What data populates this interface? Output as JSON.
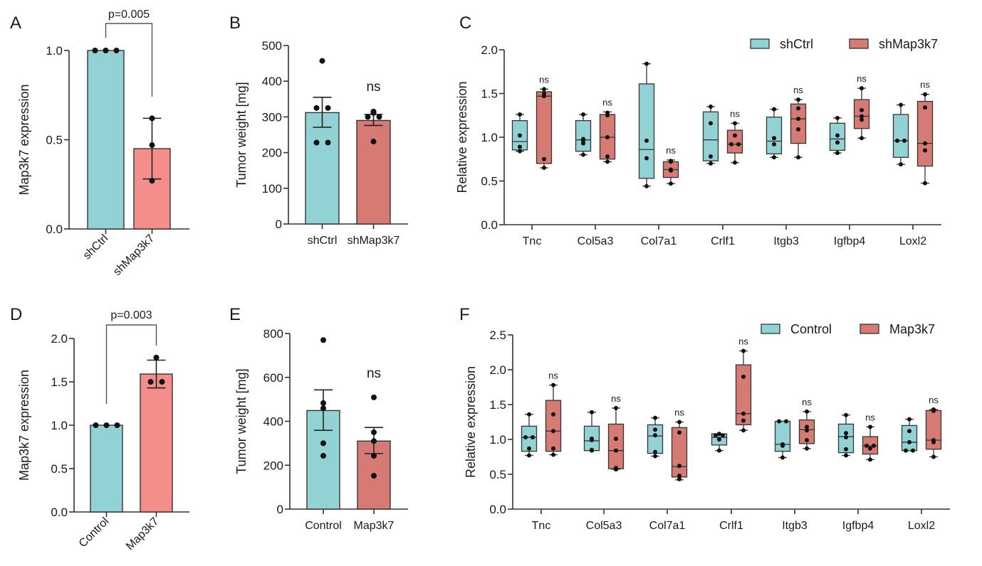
{
  "colors": {
    "control": "#93D2D4",
    "treated_bright": "#F48E8B",
    "treated": "#D67B73",
    "stroke": "#333333"
  },
  "chart_data": [
    {
      "id": "A",
      "panel_label": "A",
      "type": "bar",
      "title": "",
      "ylabel": "Map3k7 expression",
      "xlabel": "",
      "ylim": [
        0,
        1.0
      ],
      "yticks": [
        0.0,
        0.5,
        1.0
      ],
      "ytick_labels": [
        "0.0",
        "0.5",
        "1.0"
      ],
      "categories": [
        "shCtrl",
        "shMap3k7"
      ],
      "category_label_rotation": "diagonal",
      "values": [
        1.0,
        0.45
      ],
      "error": [
        [
          1.0,
          1.0
        ],
        [
          0.28,
          0.62
        ]
      ],
      "points": [
        [
          1.0,
          1.0,
          1.0
        ],
        [
          0.62,
          0.47,
          0.27
        ]
      ],
      "bar_colors": [
        "control",
        "treated_bright"
      ],
      "annotation": {
        "type": "bracket",
        "text": "p=0.005"
      }
    },
    {
      "id": "B",
      "panel_label": "B",
      "type": "bar",
      "title": "",
      "ylabel": "Tumor weight [mg]",
      "xlabel": "",
      "ylim": [
        0,
        500
      ],
      "yticks": [
        0,
        100,
        200,
        300,
        400,
        500
      ],
      "ytick_labels": [
        "0",
        "100",
        "200",
        "300",
        "400",
        "500"
      ],
      "categories": [
        "shCtrl",
        "shMap3k7"
      ],
      "category_label_rotation": "horizontal",
      "values": [
        312,
        290
      ],
      "error": [
        [
          271,
          355
        ],
        [
          276,
          307
        ]
      ],
      "points": [
        [
          457,
          325,
          325,
          228,
          228
        ],
        [
          311,
          315,
          300,
          300,
          231
        ]
      ],
      "bar_colors": [
        "control",
        "treated"
      ],
      "annotation": {
        "type": "ns",
        "text": "ns"
      }
    },
    {
      "id": "C",
      "panel_label": "C",
      "type": "box",
      "title": "",
      "ylabel": "Relative expression",
      "xlabel": "",
      "ylim": [
        0,
        2.0
      ],
      "yticks": [
        0.0,
        0.5,
        1.0,
        1.5,
        2.0
      ],
      "ytick_labels": [
        "0.0",
        "0.5",
        "1.0",
        "1.5",
        "2.0"
      ],
      "categories": [
        "Tnc",
        "Col5a3",
        "Col7a1",
        "Crlf1",
        "Itgb3",
        "Igfbp4",
        "Loxl2"
      ],
      "legend": {
        "position": "top-right",
        "entries": [
          "shCtrl",
          "shMap3k7"
        ]
      },
      "annotation_text": "ns",
      "series": [
        {
          "name": "shCtrl",
          "color": "control",
          "boxes": [
            {
              "min": 0.84,
              "q1": 0.855,
              "median": 0.95,
              "q3": 1.19,
              "max": 1.26,
              "points": [
                1.26,
                1.02,
                0.89,
                0.84
              ]
            },
            {
              "min": 0.8,
              "q1": 0.84,
              "median": 0.97,
              "q3": 1.19,
              "max": 1.26,
              "points": [
                1.26,
                0.98,
                0.96,
                0.93,
                0.8
              ]
            },
            {
              "min": 0.44,
              "q1": 0.53,
              "median": 0.86,
              "q3": 1.61,
              "max": 1.84,
              "points": [
                1.84,
                0.96,
                0.76,
                0.44
              ]
            },
            {
              "min": 0.7,
              "q1": 0.73,
              "median": 0.97,
              "q3": 1.29,
              "max": 1.35,
              "points": [
                1.35,
                1.16,
                0.78,
                0.7
              ]
            },
            {
              "min": 0.77,
              "q1": 0.81,
              "median": 0.955,
              "q3": 1.23,
              "max": 1.32,
              "points": [
                1.32,
                0.99,
                0.92,
                0.77
              ]
            },
            {
              "min": 0.82,
              "q1": 0.85,
              "median": 0.98,
              "q3": 1.16,
              "max": 1.22,
              "points": [
                1.22,
                1.02,
                0.94,
                0.82
              ]
            },
            {
              "min": 0.69,
              "q1": 0.77,
              "median": 0.96,
              "q3": 1.26,
              "max": 1.37,
              "points": [
                1.37,
                0.96,
                0.96,
                0.69
              ]
            }
          ]
        },
        {
          "name": "shMap3k7",
          "color": "treated",
          "boxes": [
            {
              "min": 0.65,
              "q1": 0.7,
              "median": 1.47,
              "q3": 1.52,
              "max": 1.55,
              "points": [
                1.55,
                1.5,
                1.47,
                0.75,
                0.65
              ],
              "sig": "ns"
            },
            {
              "min": 0.72,
              "q1": 0.75,
              "median": 1.0,
              "q3": 1.26,
              "max": 1.29,
              "points": [
                1.28,
                1.25,
                1.0,
                0.78,
                0.72
              ],
              "sig": "ns"
            },
            {
              "min": 0.47,
              "q1": 0.54,
              "median": 0.63,
              "q3": 0.72,
              "max": 0.74,
              "points": [
                0.73,
                0.72,
                0.63,
                0.62,
                0.47
              ],
              "sig": "ns"
            },
            {
              "min": 0.71,
              "q1": 0.82,
              "median": 0.92,
              "q3": 1.08,
              "max": 1.16,
              "points": [
                1.16,
                1.02,
                0.92,
                0.92,
                0.71
              ],
              "sig": "ns"
            },
            {
              "min": 0.77,
              "q1": 0.93,
              "median": 1.21,
              "q3": 1.38,
              "max": 1.43,
              "points": [
                1.43,
                1.33,
                1.21,
                1.09,
                0.77
              ],
              "sig": "ns"
            },
            {
              "min": 0.99,
              "q1": 1.1,
              "median": 1.24,
              "q3": 1.43,
              "max": 1.56,
              "points": [
                1.56,
                1.31,
                1.24,
                1.2,
                0.99
              ],
              "sig": "ns"
            },
            {
              "min": 0.475,
              "q1": 0.67,
              "median": 0.93,
              "q3": 1.41,
              "max": 1.49,
              "points": [
                1.49,
                1.34,
                0.93,
                0.85,
                0.475
              ],
              "sig": "ns"
            }
          ]
        }
      ]
    },
    {
      "id": "D",
      "panel_label": "D",
      "type": "bar",
      "title": "",
      "ylabel": "Map3k7 expression",
      "xlabel": "",
      "ylim": [
        0,
        2.0
      ],
      "yticks": [
        0.0,
        0.5,
        1.0,
        1.5,
        2.0
      ],
      "ytick_labels": [
        "0.0",
        "0.5",
        "1.0",
        "1.5",
        "2.0"
      ],
      "categories": [
        "Control",
        "Map3k7"
      ],
      "category_label_rotation": "diagonal",
      "values": [
        1.0,
        1.59
      ],
      "error": [
        [
          1.0,
          1.0
        ],
        [
          1.43,
          1.75
        ]
      ],
      "points": [
        [
          1.0,
          1.0,
          1.0
        ],
        [
          1.78,
          1.5,
          1.5
        ]
      ],
      "bar_colors": [
        "control",
        "treated_bright"
      ],
      "annotation": {
        "type": "bracket",
        "text": "p=0.003"
      }
    },
    {
      "id": "E",
      "panel_label": "E",
      "type": "bar",
      "title": "",
      "ylabel": "Tumor weight [mg]",
      "xlabel": "",
      "ylim": [
        0,
        800
      ],
      "yticks": [
        0,
        200,
        400,
        600,
        800
      ],
      "ytick_labels": [
        "0",
        "200",
        "400",
        "600",
        "800"
      ],
      "categories": [
        "Control",
        "Map3k7"
      ],
      "category_label_rotation": "horizontal",
      "values": [
        449,
        310
      ],
      "error": [
        [
          359,
          543
        ],
        [
          253,
          372
        ]
      ],
      "points": [
        [
          770,
          483,
          459,
          300,
          243
        ],
        [
          509,
          350,
          310,
          243,
          152
        ]
      ],
      "bar_colors": [
        "control",
        "treated"
      ],
      "annotation": {
        "type": "ns",
        "text": "ns"
      }
    },
    {
      "id": "F",
      "panel_label": "F",
      "type": "box",
      "title": "",
      "ylabel": "Relative expression",
      "xlabel": "",
      "ylim": [
        0,
        2.5
      ],
      "yticks": [
        0.0,
        0.5,
        1.0,
        1.5,
        2.0,
        2.5
      ],
      "ytick_labels": [
        "0.0",
        "0.5",
        "1.0",
        "1.5",
        "2.0",
        "2.5"
      ],
      "categories": [
        "Tnc",
        "Col5a3",
        "Col7a1",
        "Crlf1",
        "Itgb3",
        "Igfbp4",
        "Loxl2"
      ],
      "legend": {
        "position": "top-right",
        "entries": [
          "Control",
          "Map3k7"
        ]
      },
      "annotation_text": "ns",
      "series": [
        {
          "name": "Control",
          "color": "control",
          "boxes": [
            {
              "min": 0.77,
              "q1": 0.83,
              "median": 1.03,
              "q3": 1.19,
              "max": 1.36,
              "points": [
                1.36,
                1.03,
                1.03,
                0.87,
                0.77
              ]
            },
            {
              "min": 0.84,
              "q1": 0.84,
              "median": 0.98,
              "q3": 1.19,
              "max": 1.39,
              "points": [
                1.39,
                1.01,
                0.99,
                0.85,
                0.84
              ]
            },
            {
              "min": 0.76,
              "q1": 0.8,
              "median": 1.05,
              "q3": 1.21,
              "max": 1.31,
              "points": [
                1.31,
                1.14,
                1.06,
                0.82,
                0.76
              ]
            },
            {
              "min": 0.84,
              "q1": 0.92,
              "median": 1.03,
              "q3": 1.08,
              "max": 1.08,
              "points": [
                1.08,
                1.06,
                1.06,
                1.0,
                0.84
              ]
            },
            {
              "min": 0.74,
              "q1": 0.83,
              "median": 0.93,
              "q3": 1.26,
              "max": 1.26,
              "points": [
                1.26,
                1.26,
                0.93,
                0.91,
                0.74
              ]
            },
            {
              "min": 0.77,
              "q1": 0.81,
              "median": 1.04,
              "q3": 1.22,
              "max": 1.35,
              "points": [
                1.35,
                1.09,
                1.03,
                0.86,
                0.77
              ]
            },
            {
              "min": 0.84,
              "q1": 0.84,
              "median": 0.96,
              "q3": 1.2,
              "max": 1.29,
              "points": [
                1.29,
                1.12,
                0.96,
                0.84,
                0.84
              ]
            }
          ]
        },
        {
          "name": "Map3k7",
          "color": "treated",
          "boxes": [
            {
              "min": 0.78,
              "q1": 0.83,
              "median": 1.12,
              "q3": 1.56,
              "max": 1.78,
              "points": [
                1.78,
                1.36,
                1.12,
                0.87,
                0.78
              ],
              "sig": "ns"
            },
            {
              "min": 0.57,
              "q1": 0.58,
              "median": 0.84,
              "q3": 1.22,
              "max": 1.45,
              "points": [
                1.45,
                1.01,
                0.84,
                0.59,
                0.57
              ],
              "sig": "ns"
            },
            {
              "min": 0.42,
              "q1": 0.46,
              "median": 0.61,
              "q3": 1.17,
              "max": 1.25,
              "points": [
                1.25,
                1.1,
                0.62,
                0.48,
                0.43
              ],
              "sig": "ns"
            },
            {
              "min": 1.13,
              "q1": 1.21,
              "median": 1.37,
              "q3": 2.07,
              "max": 2.27,
              "points": [
                2.27,
                1.9,
                1.37,
                1.27,
                1.13
              ],
              "sig": "ns"
            },
            {
              "min": 0.87,
              "q1": 0.94,
              "median": 1.14,
              "q3": 1.28,
              "max": 1.4,
              "points": [
                1.4,
                1.18,
                1.13,
                0.99,
                0.87
              ],
              "sig": "ns"
            },
            {
              "min": 0.71,
              "q1": 0.79,
              "median": 0.905,
              "q3": 1.04,
              "max": 1.18,
              "points": [
                1.18,
                0.91,
                0.91,
                0.87,
                0.71
              ],
              "sig": "ns"
            },
            {
              "min": 0.75,
              "q1": 0.86,
              "median": 0.99,
              "q3": 1.415,
              "max": 1.43,
              "points": [
                1.43,
                1.41,
                0.99,
                0.96,
                0.75
              ],
              "sig": "ns"
            }
          ]
        }
      ]
    }
  ]
}
